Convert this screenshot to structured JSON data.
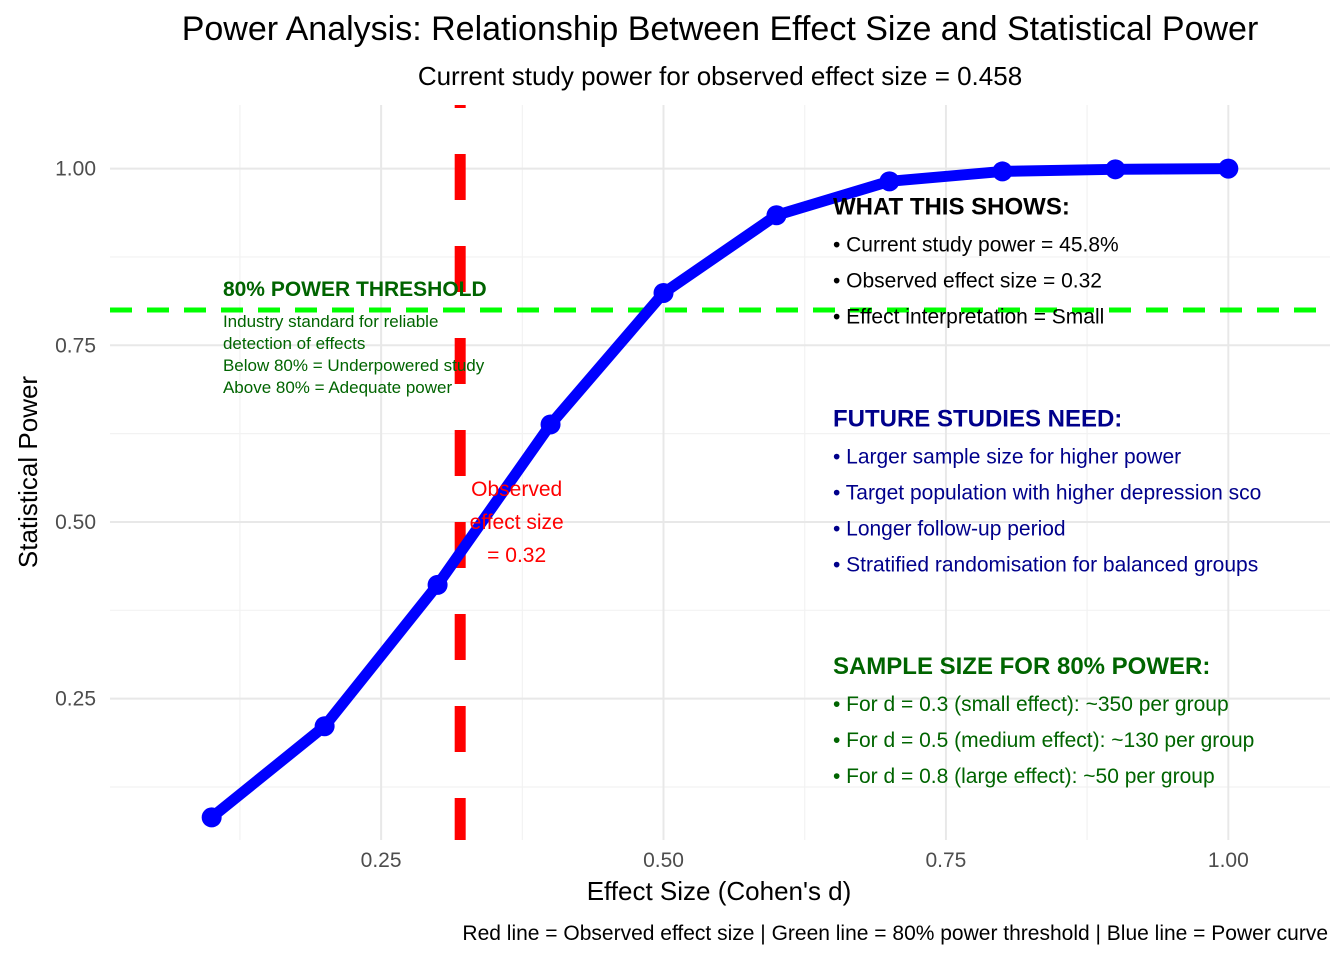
{
  "chart_data": {
    "type": "line",
    "title": "Power Analysis: Relationship Between Effect Size and Statistical Power",
    "subtitle": "Current study power for observed effect size = 0.458",
    "xlabel": "Effect Size (Cohen's d)",
    "ylabel": "Statistical Power",
    "caption": "Red line = Observed effect size | Green line = 80% power threshold | Blue line = Power curve",
    "xlim": [
      0.01,
      1.09
    ],
    "ylim": [
      0.05,
      1.09
    ],
    "x_ticks": [
      0.25,
      0.5,
      0.75,
      1.0
    ],
    "x_tick_labels": [
      "0.25",
      "0.50",
      "0.75",
      "1.00"
    ],
    "y_ticks": [
      0.25,
      0.5,
      0.75,
      1.0
    ],
    "y_tick_labels": [
      "0.25",
      "0.50",
      "0.75",
      "1.00"
    ],
    "grid": true,
    "series": [
      {
        "color": "#0000ff",
        "x": [
          0.1,
          0.2,
          0.3,
          0.4,
          0.5,
          0.6,
          0.7,
          0.8,
          0.9,
          1.0
        ],
        "values": [
          0.082,
          0.211,
          0.411,
          0.638,
          0.824,
          0.934,
          0.982,
          0.996,
          0.999,
          1.0
        ]
      }
    ],
    "observed_line": {
      "x": 0.32,
      "color": "#ff0000"
    },
    "threshold_line": {
      "y": 0.8,
      "color": "#00ff00"
    },
    "annotations": {
      "observed": {
        "x": 0.37,
        "y": 0.5,
        "color": "#ff0000",
        "lines": [
          "Observed",
          "effect size",
          "= 0.32"
        ]
      },
      "threshold": {
        "x": 0.11,
        "y": 0.82,
        "color": "#006400",
        "title": "80% POWER THRESHOLD",
        "lines": [
          "Industry standard for reliable",
          "detection of effects",
          "Below 80% = Underpowered study",
          "Above 80% = Adequate power"
        ]
      },
      "what_shows": {
        "x": 0.65,
        "y": 0.935,
        "color": "#000000",
        "title": "WHAT THIS SHOWS:",
        "lines": [
          "• Current study power = 45.8%",
          "• Observed effect size = 0.32",
          "• Effect interpretation = Small"
        ]
      },
      "future": {
        "x": 0.65,
        "y": 0.635,
        "color": "#00008b",
        "title": "FUTURE STUDIES NEED:",
        "lines": [
          "• Larger sample size for higher power",
          "• Target population with higher depression sco",
          "• Longer follow-up period",
          "• Stratified randomisation for balanced groups"
        ]
      },
      "sample": {
        "x": 0.65,
        "y": 0.285,
        "color": "#006400",
        "title": "SAMPLE SIZE FOR 80% POWER:",
        "lines": [
          "• For d = 0.3 (small effect): ~350 per group",
          "• For d = 0.5 (medium effect): ~130 per group",
          "• For d = 0.8 (large effect): ~50 per group"
        ]
      }
    }
  }
}
